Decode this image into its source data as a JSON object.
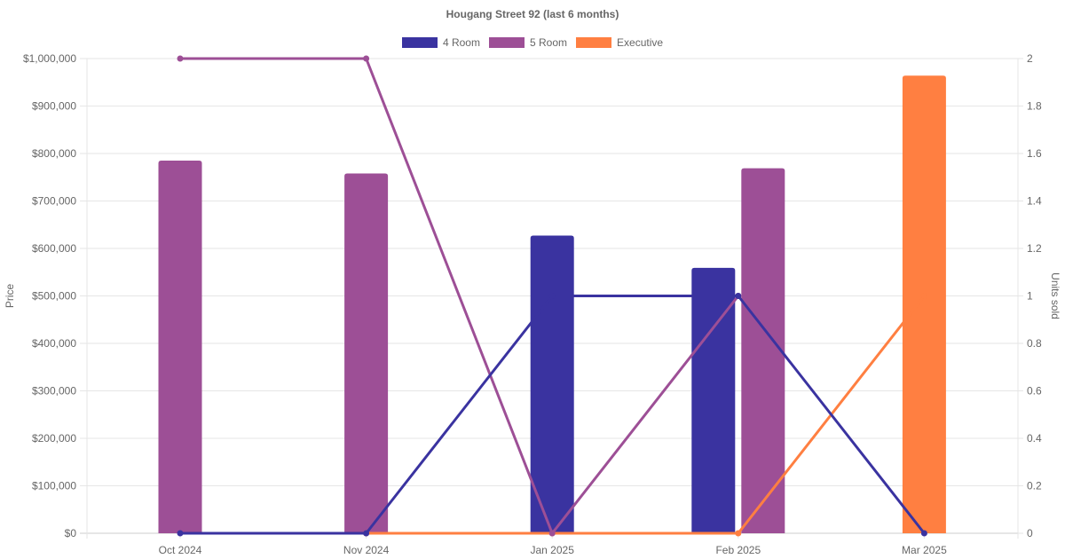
{
  "chart_data": {
    "type": "bar",
    "title": "Hougang Street 92 (last 6 months)",
    "categories": [
      "Oct 2024",
      "Nov 2024",
      "Jan 2025",
      "Feb 2025",
      "Mar 2025"
    ],
    "y_left": {
      "label": "Price",
      "range": [
        0,
        1000000
      ],
      "ticks": [
        "$0",
        "$100,000",
        "$200,000",
        "$300,000",
        "$400,000",
        "$500,000",
        "$600,000",
        "$700,000",
        "$800,000",
        "$900,000",
        "$1,000,000"
      ]
    },
    "y_right": {
      "label": "Units sold",
      "range": [
        0,
        2
      ],
      "ticks": [
        "0",
        "0.2",
        "0.4",
        "0.6",
        "0.8",
        "1",
        "1.2",
        "1.4",
        "1.6",
        "1.8",
        "2"
      ]
    },
    "grid": true,
    "legend_position": "top",
    "series": [
      {
        "name": "4 Room",
        "color": "#3a33a0",
        "price": [
          null,
          null,
          627000,
          559000,
          null
        ],
        "units_sold": [
          0,
          0,
          1,
          1,
          0
        ]
      },
      {
        "name": "5 Room",
        "color": "#9d4f96",
        "price": [
          785000,
          758000,
          null,
          769000,
          null
        ],
        "units_sold": [
          2,
          2,
          0,
          1,
          null
        ]
      },
      {
        "name": "Executive",
        "color": "#ff7f41",
        "price": [
          null,
          null,
          null,
          null,
          964000
        ],
        "units_sold": [
          null,
          0,
          0,
          0,
          1
        ]
      }
    ]
  }
}
